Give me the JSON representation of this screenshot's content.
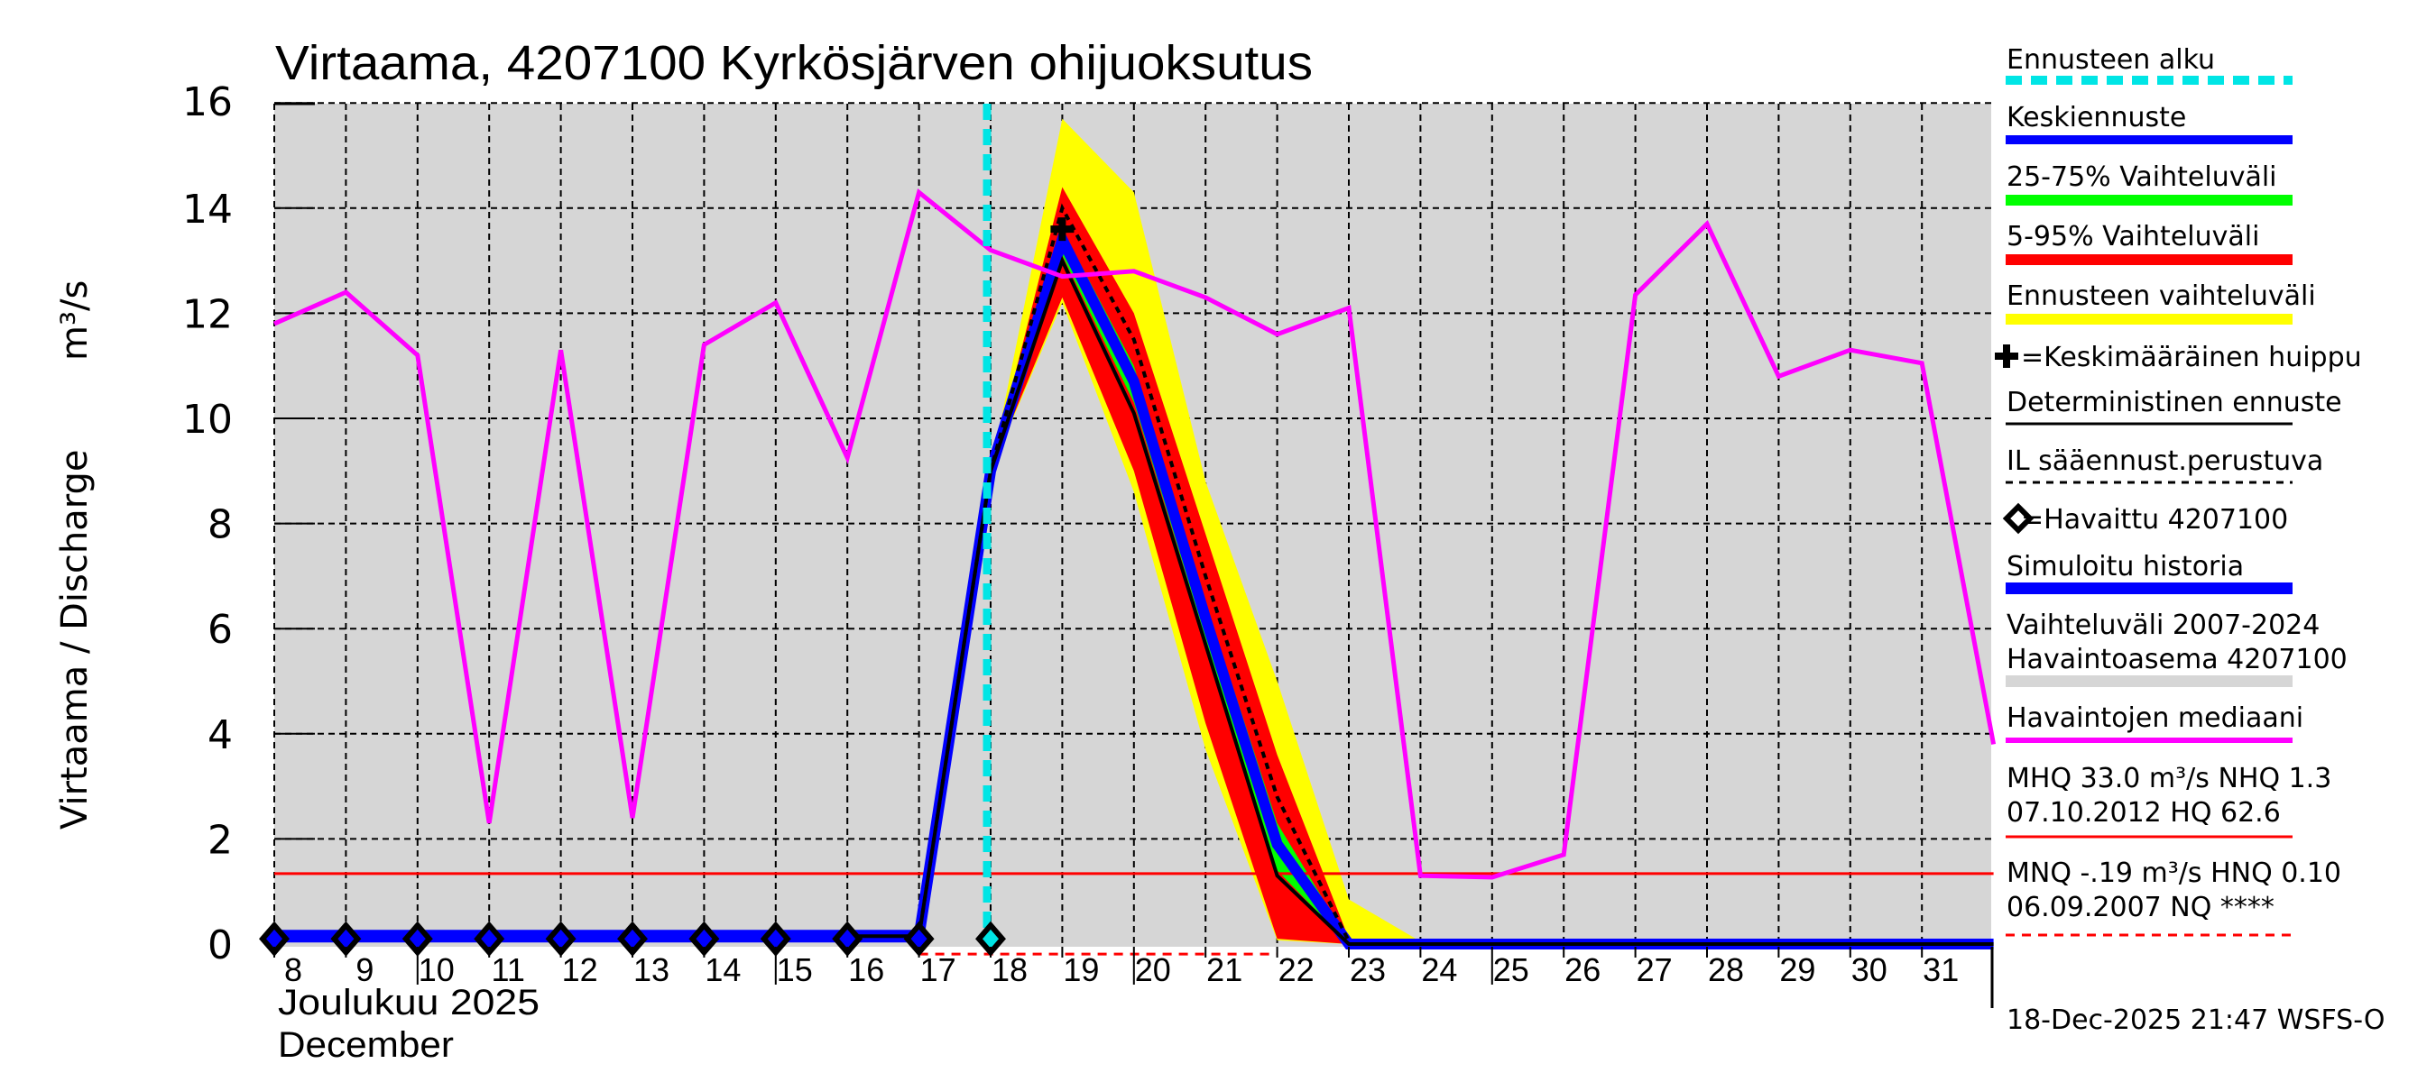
{
  "chart_data": {
    "type": "line",
    "title": "Virtaama, 4207100 Kyrkösjärven ohijuoksutus",
    "ylabel": "Virtaama / Discharge",
    "yunit": "m³/s",
    "xlabel_fi": "Joulukuu  2025",
    "xlabel_en": "December",
    "ylim": [
      0,
      16
    ],
    "yticks": [
      0,
      2,
      4,
      6,
      8,
      10,
      12,
      14,
      16
    ],
    "xlim": [
      8,
      32
    ],
    "x_tick_labels": [
      "8",
      "9",
      "10",
      "11",
      "12",
      "13",
      "14",
      "15",
      "16",
      "17",
      "18",
      "19",
      "20",
      "21",
      "22",
      "23",
      "24",
      "25",
      "26",
      "27",
      "28",
      "29",
      "30",
      "31"
    ],
    "grid": true,
    "forecast_start_day": 17.95,
    "legend_position": "right",
    "series": [
      {
        "name": "Havaintojen mediaani",
        "color": "#ff00ff",
        "x": [
          8,
          9,
          10,
          11,
          12,
          13,
          14,
          15,
          16,
          17,
          18,
          19,
          20,
          21,
          22,
          23,
          24,
          25,
          26,
          27,
          28,
          29,
          30,
          31,
          32
        ],
        "values": [
          11.8,
          12.4,
          11.2,
          2.3,
          11.3,
          2.4,
          11.4,
          12.2,
          9.25,
          14.3,
          13.2,
          12.7,
          12.8,
          12.3,
          11.6,
          12.1,
          1.3,
          1.27,
          1.7,
          12.35,
          13.7,
          10.8,
          11.3,
          11.05,
          3.8
        ]
      },
      {
        "name": "Simuloitu historia",
        "color": "#0000ff",
        "x": [
          8,
          9,
          10,
          11,
          12,
          13,
          14,
          15,
          16,
          17
        ],
        "values": [
          0.15,
          0.15,
          0.15,
          0.15,
          0.15,
          0.15,
          0.15,
          0.15,
          0.15,
          0.15
        ]
      },
      {
        "name": "Keskiennuste",
        "color": "#0000ff",
        "x": [
          17,
          18,
          19,
          20,
          21,
          22,
          23,
          24,
          25,
          26,
          27,
          28,
          29,
          30,
          31,
          32
        ],
        "values": [
          0.15,
          9.0,
          13.4,
          10.7,
          6.2,
          1.9,
          0.0,
          0.0,
          0.0,
          0.0,
          0.0,
          0.0,
          0.0,
          0.0,
          0.0,
          0.0
        ]
      },
      {
        "name": "Deterministinen ennuste",
        "color": "#000000",
        "x": [
          16,
          17,
          18,
          19,
          20,
          21,
          22,
          23,
          24,
          25,
          26,
          27,
          28,
          29,
          30,
          31,
          32
        ],
        "values": [
          0.15,
          0.15,
          9.0,
          13.0,
          10.1,
          5.7,
          1.3,
          0.0,
          0.0,
          0.0,
          0.0,
          0.0,
          0.0,
          0.0,
          0.0,
          0.0,
          0.0
        ]
      },
      {
        "name": "IL sääennust.perustuva",
        "color": "#000000",
        "dash": true,
        "x": [
          17,
          18,
          19,
          20,
          21,
          22,
          23
        ],
        "values": [
          0.15,
          9.0,
          14.0,
          11.5,
          7.0,
          2.8,
          0.05
        ]
      },
      {
        "name": "25-75% Vaihteluväli",
        "color": "#00ff00",
        "x": [
          18,
          19,
          20,
          21,
          22,
          23
        ],
        "upper": [
          9.0,
          13.6,
          11.0,
          6.5,
          2.3,
          0.05
        ],
        "lower": [
          9.0,
          13.1,
          10.3,
          5.8,
          1.4,
          0.0
        ]
      },
      {
        "name": "5-95% Vaihteluväli",
        "color": "#ff0000",
        "x": [
          18,
          19,
          20,
          21,
          22,
          23
        ],
        "upper": [
          9.0,
          14.4,
          12.0,
          7.8,
          3.6,
          0.1
        ],
        "lower": [
          9.0,
          12.3,
          9.0,
          4.2,
          0.1,
          0.0
        ]
      },
      {
        "name": "Ennusteen vaihteluväli",
        "color": "#ffff00",
        "x": [
          18,
          19,
          20,
          21,
          22,
          23,
          24
        ],
        "upper": [
          9.0,
          15.7,
          14.3,
          8.8,
          5.0,
          0.85,
          0.05
        ],
        "lower": [
          9.0,
          12.2,
          8.6,
          3.7,
          0.07,
          0.0,
          0.0
        ]
      },
      {
        "name": "Havaittu 4207100",
        "color": "#000000",
        "marker": "diamond",
        "x": [
          8,
          9,
          10,
          11,
          12,
          13,
          14,
          15,
          16,
          17,
          18
        ],
        "values": [
          0.15,
          0.15,
          0.15,
          0.15,
          0.15,
          0.15,
          0.15,
          0.15,
          0.15,
          0.15,
          0.15
        ]
      },
      {
        "name": "Keskimääräinen huippu",
        "marker": "plus",
        "x": [
          19
        ],
        "values": [
          13.6
        ]
      },
      {
        "name": "NHQ",
        "color": "#ff0000",
        "x": [
          8,
          32
        ],
        "values": [
          1.34,
          1.34
        ]
      },
      {
        "name": "MNQ",
        "color": "#ff0000",
        "dash": true,
        "x": [
          17,
          22
        ],
        "values": [
          -0.19,
          -0.19
        ]
      }
    ]
  },
  "title": "Virtaama, 4207100 Kyrkösjärven ohijuoksutus",
  "yaxis": {
    "label": "Virtaama / Discharge",
    "unit": "m³/s",
    "ticks": [
      "0",
      "2",
      "4",
      "6",
      "8",
      "10",
      "12",
      "14",
      "16"
    ]
  },
  "xaxis": {
    "ticks": [
      "8",
      "9",
      "10",
      "11",
      "12",
      "13",
      "14",
      "15",
      "16",
      "17",
      "18",
      "19",
      "20",
      "21",
      "22",
      "23",
      "24",
      "25",
      "26",
      "27",
      "28",
      "29",
      "30",
      "31"
    ],
    "month_fi": "Joulukuu  2025",
    "month_en": "December"
  },
  "legend": {
    "forecast_start": "Ennusteen alku",
    "mean_forecast": "Keskiennuste",
    "range_25_75": "25-75% Vaihteluväli",
    "range_5_95": "5-95% Vaihteluväli",
    "forecast_range": "Ennusteen vaihteluväli",
    "mean_peak": "=Keskimääräinen huippu",
    "deterministic": "Deterministinen ennuste",
    "il_based": "IL sääennust.perustuva",
    "observed": "=Havaittu 4207100",
    "simulated": "Simuloitu historia",
    "hist_range_1": "Vaihteluväli 2007-2024",
    "hist_range_2": "Havaintoasema 4207100",
    "median": "Havaintojen mediaani",
    "mhq_1": "MHQ 33.0 m³/s NHQ  1.3",
    "mhq_2": "07.10.2012 HQ 62.6",
    "mnq_1": "MNQ -.19 m³/s HNQ 0.10",
    "mnq_2": "06.09.2007 NQ ****"
  },
  "colors": {
    "plot_bg": "#d6d6d6",
    "cyan": "#00e5e5",
    "blue": "#0000ff",
    "green": "#00ff00",
    "red": "#ff0000",
    "yellow": "#ffff00",
    "magenta": "#ff00ff",
    "gray": "#d6d6d6"
  },
  "footer": "18-Dec-2025 21:47 WSFS-O"
}
